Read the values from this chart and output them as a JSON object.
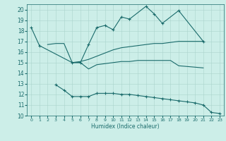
{
  "xlabel": "Humidex (Indice chaleur)",
  "series": {
    "s1_x": [
      0,
      1,
      5,
      6,
      7,
      8,
      9,
      10,
      11,
      12,
      14,
      15,
      16,
      18,
      21
    ],
    "s1_y": [
      18.3,
      16.6,
      15.0,
      15.0,
      16.7,
      18.3,
      18.5,
      18.1,
      19.3,
      19.1,
      20.3,
      19.6,
      18.7,
      19.9,
      17.0
    ],
    "s2_x": [
      2,
      3,
      4,
      5,
      6,
      7,
      8,
      9,
      10,
      11,
      12,
      13,
      14,
      15,
      16,
      17,
      18,
      19,
      20,
      21
    ],
    "s2_y": [
      16.7,
      16.8,
      16.8,
      15.0,
      15.1,
      15.3,
      15.6,
      15.9,
      16.2,
      16.4,
      16.5,
      16.6,
      16.7,
      16.8,
      16.8,
      16.9,
      17.0,
      17.0,
      17.0,
      17.0
    ],
    "s3_x": [
      5,
      6,
      7,
      8,
      9,
      10,
      11,
      12,
      13,
      14,
      15,
      16,
      17,
      18,
      21
    ],
    "s3_y": [
      15.0,
      15.0,
      14.4,
      14.8,
      14.9,
      15.0,
      15.1,
      15.1,
      15.2,
      15.2,
      15.2,
      15.2,
      15.2,
      14.7,
      14.5
    ],
    "s4_x": [
      3,
      4,
      5,
      6,
      7,
      8,
      9,
      10,
      11,
      12,
      13,
      14,
      15,
      16,
      17,
      18,
      19,
      20,
      21,
      22,
      23
    ],
    "s4_y": [
      12.9,
      12.4,
      11.8,
      11.8,
      11.8,
      12.1,
      12.1,
      12.1,
      12.0,
      12.0,
      11.9,
      11.8,
      11.7,
      11.6,
      11.5,
      11.4,
      11.3,
      11.2,
      11.0,
      10.3,
      10.2
    ]
  },
  "color": "#1a6b6b",
  "bg_color": "#cceee8",
  "grid_color": "#aad4cc",
  "ylim": [
    10,
    20.5
  ],
  "yticks": [
    10,
    11,
    12,
    13,
    14,
    15,
    16,
    17,
    18,
    19,
    20
  ],
  "xlim": [
    -0.5,
    23.5
  ],
  "xticks": [
    0,
    1,
    2,
    3,
    4,
    5,
    6,
    7,
    8,
    9,
    10,
    11,
    12,
    13,
    14,
    15,
    16,
    17,
    18,
    19,
    20,
    21,
    22,
    23
  ]
}
